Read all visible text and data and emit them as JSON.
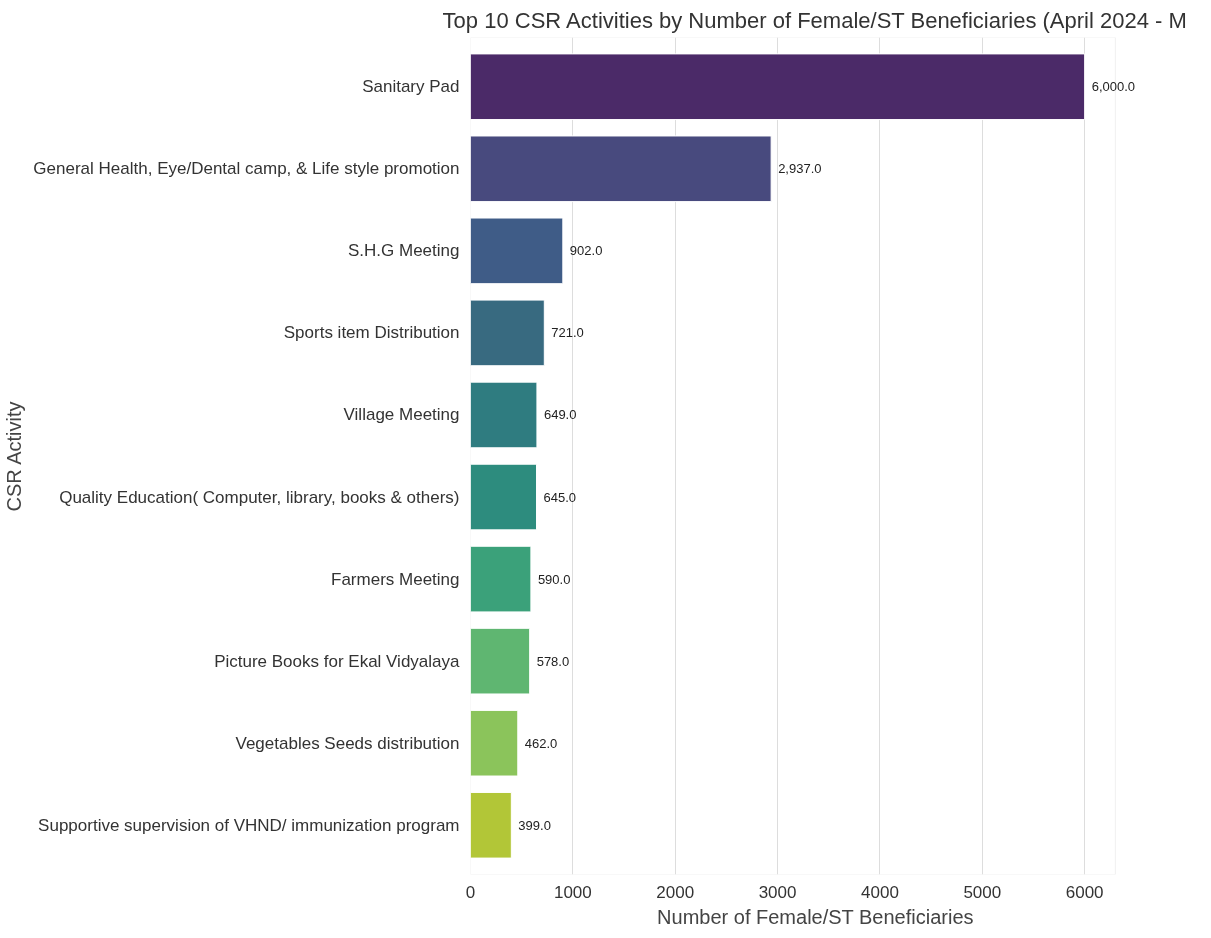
{
  "chart_data": {
    "type": "bar",
    "orientation": "horizontal",
    "title": "Top 10 CSR Activities by Number of Female/ST Beneficiaries (April 2024 - M",
    "xlabel": "Number of Female/ST Beneficiaries",
    "ylabel": "CSR Activity",
    "categories": [
      "Sanitary Pad",
      "General Health, Eye/Dental camp, & Life style promotion",
      "S.H.G Meeting",
      "Sports item Distribution",
      "Village Meeting",
      "Quality Education( Computer, library, books & others)",
      "Farmers Meeting",
      "Picture Books for Ekal Vidyalaya",
      "Vegetables Seeds distribution",
      "Supportive supervision of VHND/ immunization program"
    ],
    "values": [
      6000,
      2937,
      902,
      721,
      649,
      645,
      590,
      578,
      462,
      399
    ],
    "value_labels": [
      "6,000.0",
      "2,937.0",
      "902.0",
      "721.0",
      "649.0",
      "645.0",
      "590.0",
      "578.0",
      "462.0",
      "399.0"
    ],
    "colors": [
      "#4b2a68",
      "#484a7e",
      "#3f5c87",
      "#386a80",
      "#2f7c80",
      "#2d8c7e",
      "#3ba17a",
      "#5fb671",
      "#8bc45b",
      "#b2c637"
    ],
    "xlim": [
      0,
      6300
    ],
    "xticks": [
      0,
      1000,
      2000,
      3000,
      4000,
      5000,
      6000
    ],
    "grid": "x"
  }
}
